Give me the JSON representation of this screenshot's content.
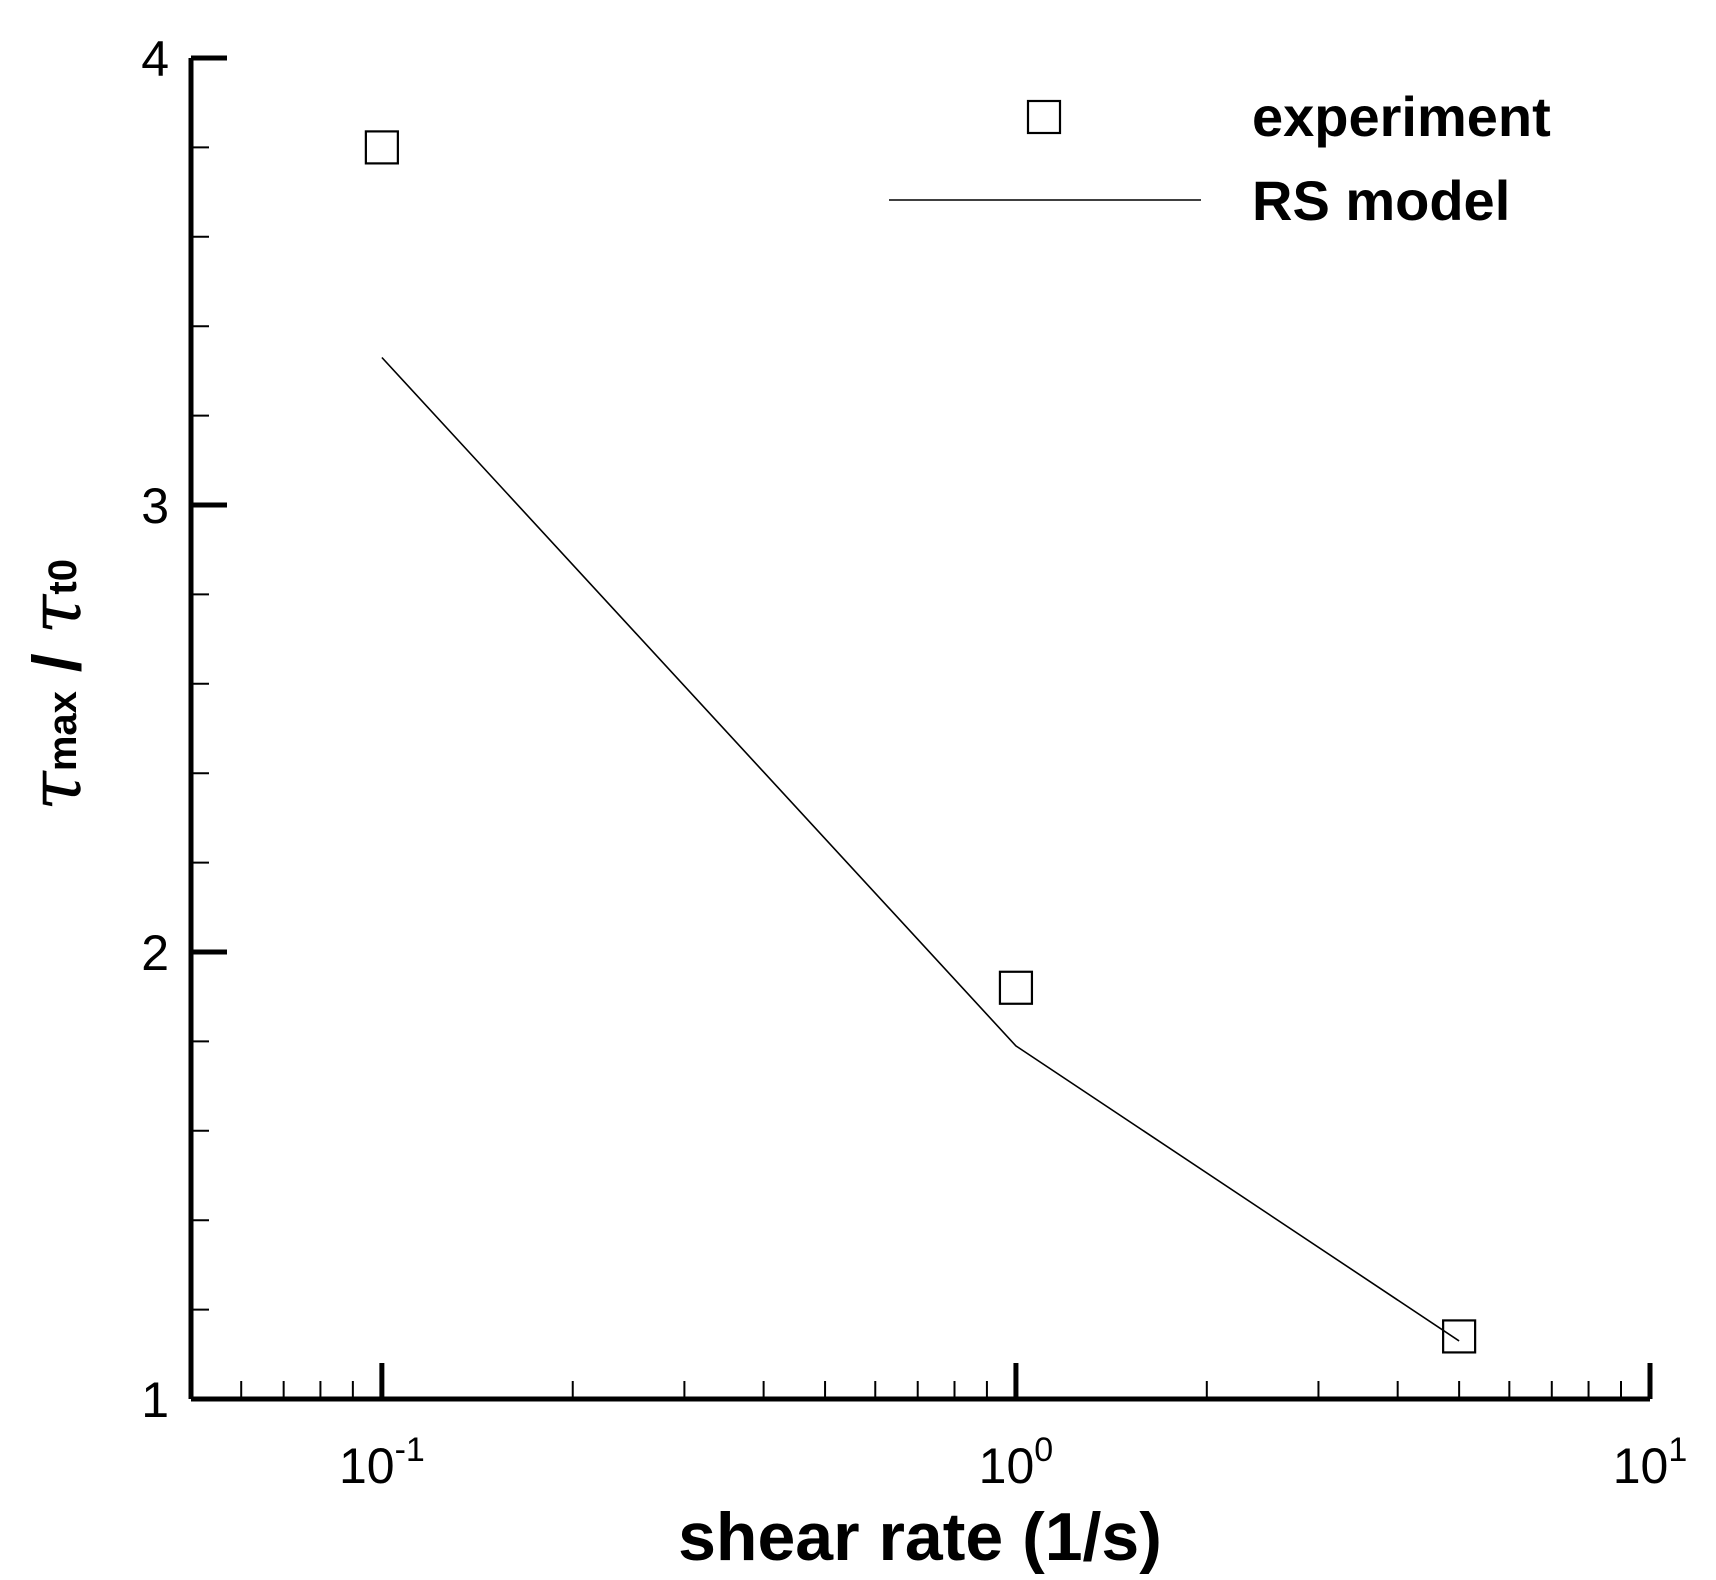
{
  "chart_data": {
    "type": "line",
    "xscale": "log",
    "xlim": [
      0.05,
      10
    ],
    "ylim": [
      1,
      4
    ],
    "x_ticks": [
      {
        "base": "10",
        "exp": "-1",
        "value": 0.1
      },
      {
        "base": "10",
        "exp": "0",
        "value": 1
      },
      {
        "base": "10",
        "exp": "1",
        "value": 10
      }
    ],
    "y_ticks": [
      "1",
      "2",
      "3",
      "4"
    ],
    "y_minor_step": 0.2,
    "xlabel": "shear rate (1/s)",
    "ylabel": {
      "symbol": "τ",
      "sub1": "max",
      "sep": " / ",
      "sub2": "t0"
    },
    "series": [
      {
        "name": "experiment",
        "kind": "markers",
        "marker": "open-square",
        "x": [
          0.1,
          1,
          5
        ],
        "y": [
          3.8,
          1.92,
          1.14
        ]
      },
      {
        "name": "RS model",
        "kind": "line",
        "x": [
          0.1,
          1,
          5
        ],
        "y": [
          3.33,
          1.79,
          1.13
        ]
      }
    ],
    "legend": {
      "position": "top-right",
      "entries": [
        "experiment",
        "RS model"
      ]
    }
  }
}
